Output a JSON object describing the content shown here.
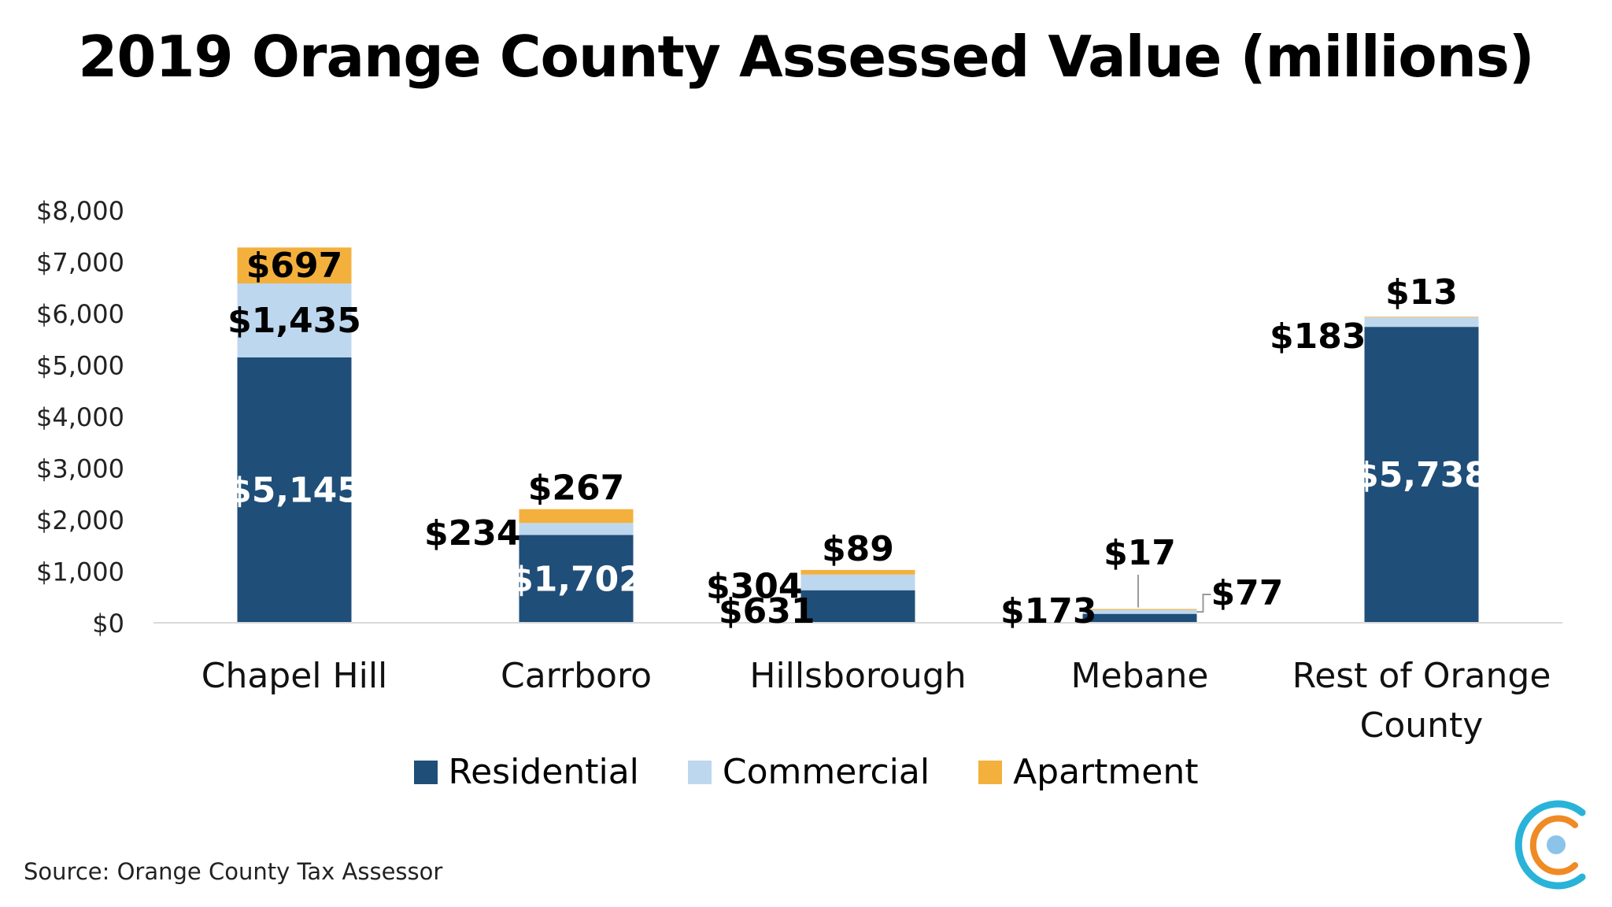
{
  "title": "2019 Orange County Assessed Value (millions)",
  "source": "Source: Orange County Tax Assessor",
  "logo_icon": "concentric-c-logo-icon",
  "colors": {
    "residential": "#1F4E79",
    "commercial": "#BDD7EE",
    "apartment": "#F4B03D",
    "axis": "#D9D9D9",
    "logo_outer": "#29B3D8",
    "logo_middle": "#F08A24",
    "logo_inner": "#8BC4E8"
  },
  "chart_data": {
    "type": "bar",
    "stacked": true,
    "title": "2019 Orange County Assessed Value (millions)",
    "categories": [
      "Chapel Hill",
      "Carrboro",
      "Hillsborough",
      "Mebane",
      "Rest of Orange County"
    ],
    "category_lines": [
      [
        "Chapel Hill"
      ],
      [
        "Carrboro"
      ],
      [
        "Hillsborough"
      ],
      [
        "Mebane"
      ],
      [
        "Rest of Orange",
        "County"
      ]
    ],
    "series": [
      {
        "name": "Residential",
        "values": [
          5145,
          1702,
          631,
          173,
          5738
        ],
        "labels": [
          "$5,145",
          "$1,702",
          "$631",
          "$173",
          "$5,738"
        ]
      },
      {
        "name": "Commercial",
        "values": [
          1435,
          234,
          304,
          77,
          183
        ],
        "labels": [
          "$1,435",
          "$234",
          "$304",
          "$77",
          "$183"
        ]
      },
      {
        "name": "Apartment",
        "values": [
          697,
          267,
          89,
          17,
          13
        ],
        "labels": [
          "$697",
          "$267",
          "$89",
          "$17",
          "$13"
        ]
      }
    ],
    "ylim": [
      0,
      8000
    ],
    "yticks": [
      0,
      1000,
      2000,
      3000,
      4000,
      5000,
      6000,
      7000,
      8000
    ],
    "ytick_labels": [
      "$0",
      "$1,000",
      "$2,000",
      "$3,000",
      "$4,000",
      "$5,000",
      "$6,000",
      "$7,000",
      "$8,000"
    ],
    "grid": false,
    "legend": "bottom"
  }
}
